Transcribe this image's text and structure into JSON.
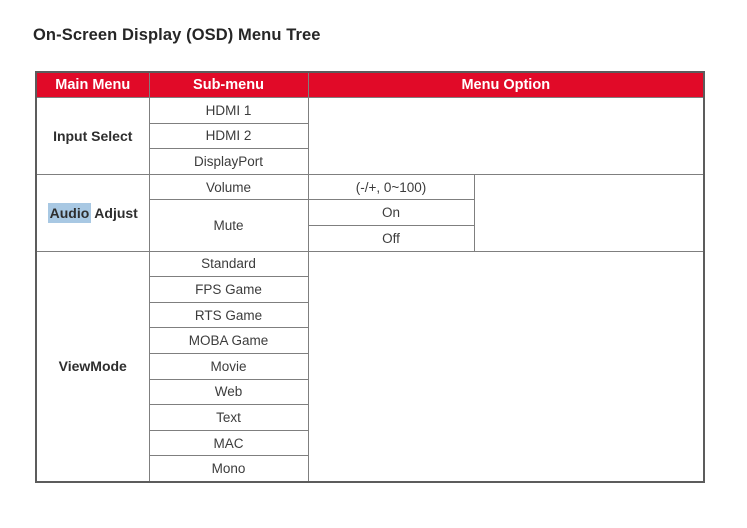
{
  "title": "On-Screen Display (OSD) Menu Tree",
  "table": {
    "headers": {
      "main": "Main Menu",
      "sub": "Sub-menu",
      "option": "Menu Option"
    },
    "input_select": {
      "main": "Input Select",
      "subs": [
        "HDMI 1",
        "HDMI 2",
        "DisplayPort"
      ],
      "option": ""
    },
    "audio_adjust": {
      "main_highlighted": "Audio",
      "main_rest": "Adjust",
      "subs": [
        "Volume",
        "Mute"
      ],
      "volume_option": "(-/+, 0~100)",
      "mute_options": [
        "On",
        "Off"
      ]
    },
    "view_mode": {
      "main": "ViewMode",
      "subs": [
        "Standard",
        "FPS Game",
        "RTS Game",
        "MOBA Game",
        "Movie",
        "Web",
        "Text",
        "MAC",
        "Mono"
      ]
    }
  },
  "colors": {
    "header_bg": "#e10a28",
    "header_text": "#ffffff",
    "selection_highlight": "#a8c8e3",
    "border": "#7f7f7f",
    "body_text": "#3c3c3c"
  }
}
